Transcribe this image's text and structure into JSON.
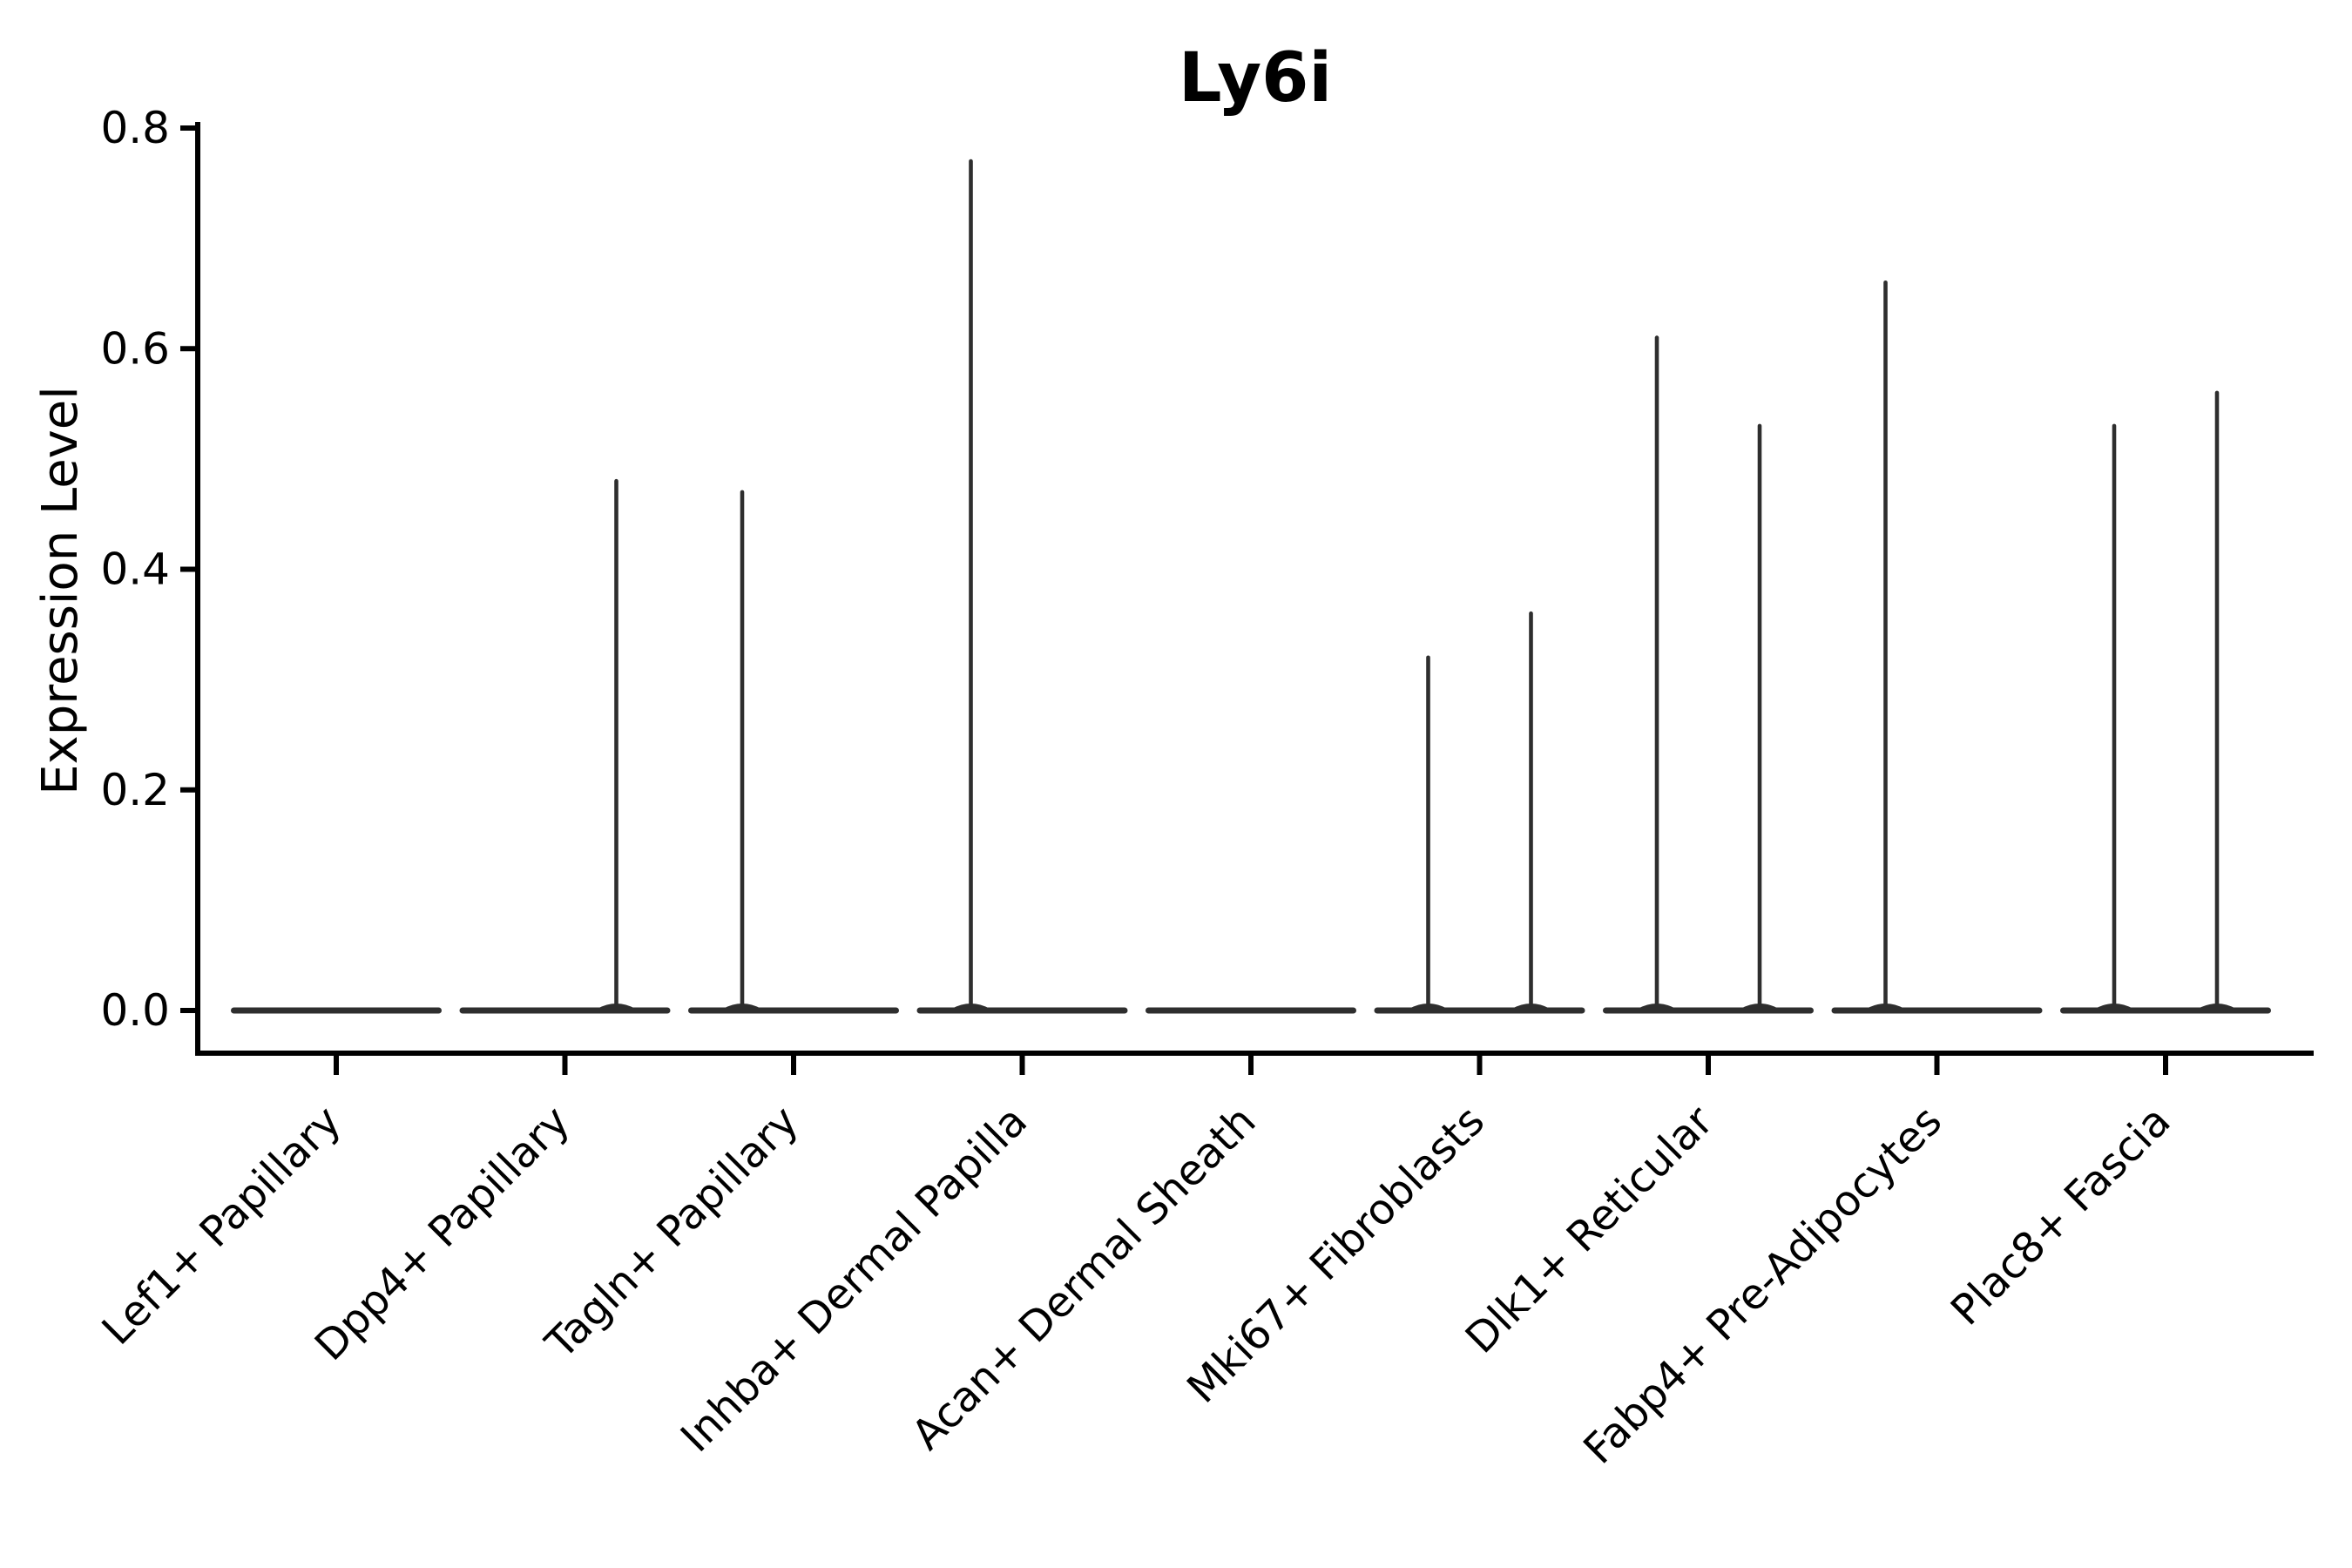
{
  "chart_data": {
    "type": "violin",
    "title": "Ly6i",
    "xlabel": "",
    "ylabel": "Expression Level",
    "ylim": [
      0,
      0.8
    ],
    "yticks": [
      0.0,
      0.2,
      0.4,
      0.6,
      0.8
    ],
    "ytick_labels": [
      "0.0",
      "0.2",
      "0.4",
      "0.6",
      "0.8"
    ],
    "grid": false,
    "legend": null,
    "x_tick_rotation_deg": 45,
    "background_color": "#ffffff",
    "colors": {
      "violin": "#2e2e2e",
      "axis": "#000000",
      "text": "#000000"
    },
    "categories": [
      "Lef1+ Papillary",
      "Dpp4+ Papillary",
      "Tagln+ Papillary",
      "Inhba+ Dermal Papilla",
      "Acan+ Dermal Sheath",
      "Mki67+ Fibroblasts",
      "Dlk1+ Reticular",
      "Fabp4+ Pre-Adipocytes",
      "Plac8+ Fascia"
    ],
    "violins": [
      {
        "category": "Lef1+ Papillary",
        "flat_body_at_zero": true,
        "spikes": []
      },
      {
        "category": "Dpp4+ Papillary",
        "flat_body_at_zero": true,
        "spikes": [
          {
            "side": "right",
            "max": 0.48
          }
        ]
      },
      {
        "category": "Tagln+ Papillary",
        "flat_body_at_zero": true,
        "spikes": [
          {
            "side": "left",
            "max": 0.47
          }
        ]
      },
      {
        "category": "Inhba+ Dermal Papilla",
        "flat_body_at_zero": true,
        "spikes": [
          {
            "side": "left",
            "max": 0.77
          }
        ]
      },
      {
        "category": "Acan+ Dermal Sheath",
        "flat_body_at_zero": true,
        "spikes": []
      },
      {
        "category": "Mki67+ Fibroblasts",
        "flat_body_at_zero": true,
        "spikes": [
          {
            "side": "left",
            "max": 0.32
          },
          {
            "side": "right",
            "max": 0.36
          }
        ]
      },
      {
        "category": "Dlk1+ Reticular",
        "flat_body_at_zero": true,
        "spikes": [
          {
            "side": "left",
            "max": 0.61
          },
          {
            "side": "right",
            "max": 0.53
          }
        ]
      },
      {
        "category": "Fabp4+ Pre-Adipocytes",
        "flat_body_at_zero": true,
        "spikes": [
          {
            "side": "left",
            "max": 0.66
          }
        ]
      },
      {
        "category": "Plac8+ Fascia",
        "flat_body_at_zero": true,
        "spikes": [
          {
            "side": "left",
            "max": 0.53
          },
          {
            "side": "right",
            "max": 0.56
          }
        ]
      }
    ]
  }
}
